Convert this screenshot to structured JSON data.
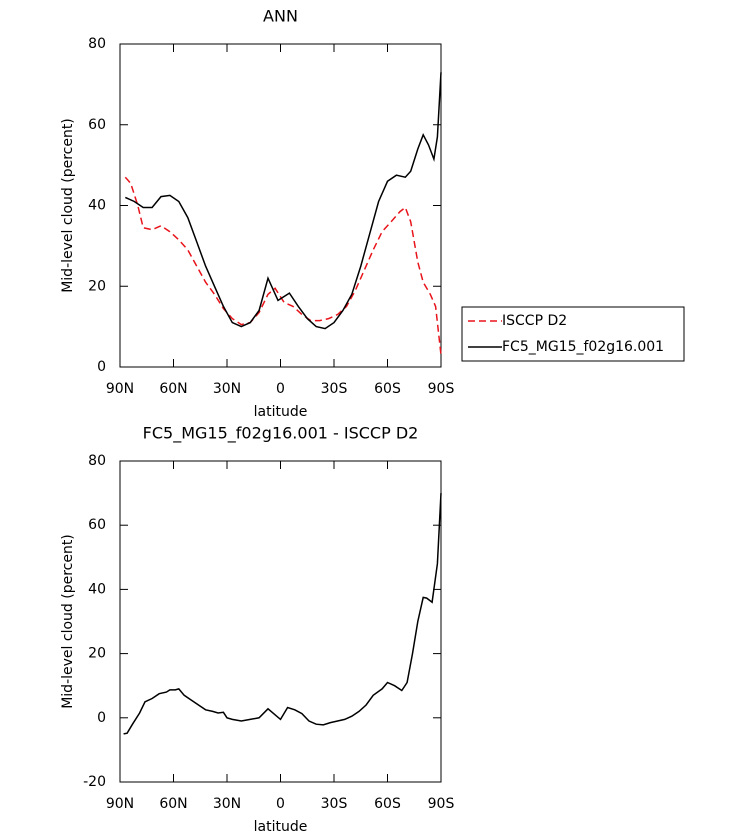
{
  "chart_data": [
    {
      "type": "line",
      "title": "ANN",
      "x_label": "latitude",
      "y_label": "Mid-level cloud (percent)",
      "xlim": [
        90,
        -90
      ],
      "xticks": [
        {
          "value": 90,
          "label": "90N"
        },
        {
          "value": 60,
          "label": "60N"
        },
        {
          "value": 30,
          "label": "30N"
        },
        0,
        {
          "value": -30,
          "label": "30S"
        },
        {
          "value": -60,
          "label": "60S"
        },
        {
          "value": -90,
          "label": "90S"
        }
      ],
      "ylim": [
        0,
        80
      ],
      "yticks": [
        0,
        20,
        40,
        60,
        80
      ],
      "legend": "right",
      "series": [
        {
          "name": "ISCCP D2",
          "color": "#e8141b",
          "linestyle": "dashed",
          "x": [
            87,
            84,
            80,
            77,
            72,
            67,
            62,
            57,
            52,
            47,
            42,
            37,
            32,
            27,
            22,
            17,
            12,
            7,
            3,
            -2,
            -7,
            -12,
            -17,
            -22,
            -27,
            -32,
            -37,
            -42,
            -47,
            -52,
            -57,
            -62,
            -67,
            -70,
            -73,
            -77,
            -80,
            -84,
            -87,
            -90
          ],
          "values": [
            47,
            45.5,
            40,
            34.5,
            34,
            35,
            33.5,
            31.5,
            29,
            25,
            21,
            18,
            14.5,
            12,
            10.5,
            11,
            13.5,
            18,
            19.5,
            16,
            15,
            13,
            11.5,
            11.5,
            12,
            13,
            15,
            19,
            24,
            29,
            33.5,
            36,
            38.5,
            39.5,
            36,
            26,
            21,
            18,
            15,
            3
          ]
        },
        {
          "name": "FC5_MG15_f02g16.001",
          "color": "#000000",
          "linestyle": "solid",
          "x": [
            87,
            82,
            77,
            72,
            67,
            62,
            57,
            52,
            47,
            42,
            37,
            32,
            27,
            22,
            17,
            12,
            7,
            1.4,
            -5,
            -10,
            -15,
            -20,
            -25,
            -30,
            -35,
            -40,
            -45,
            -50,
            -55,
            -60,
            -65,
            -70,
            -73,
            -77,
            -80,
            -83,
            -86,
            -88,
            -90
          ],
          "values": [
            42,
            41,
            39.5,
            39.5,
            42.2,
            42.5,
            41,
            37,
            31,
            25,
            20,
            15,
            11,
            10,
            11,
            14,
            22,
            16.5,
            18.3,
            15,
            12,
            10,
            9.5,
            11,
            14,
            18,
            25,
            33,
            41,
            46,
            47.5,
            47,
            48.5,
            54,
            57.5,
            55,
            51.5,
            57,
            73
          ]
        }
      ]
    },
    {
      "type": "line",
      "title": "FC5_MG15_f02g16.001 - ISCCP D2",
      "x_label": "latitude",
      "y_label": "Mid-level cloud (percent)",
      "xlim": [
        90,
        -90
      ],
      "xticks": [
        {
          "value": 90,
          "label": "90N"
        },
        {
          "value": 60,
          "label": "60N"
        },
        {
          "value": 30,
          "label": "30N"
        },
        0,
        {
          "value": -30,
          "label": "30S"
        },
        {
          "value": -60,
          "label": "60S"
        },
        {
          "value": -90,
          "label": "90S"
        }
      ],
      "ylim": [
        -20,
        80
      ],
      "yticks": [
        -20,
        0,
        20,
        40,
        60,
        80
      ],
      "series": [
        {
          "color": "#000000",
          "linestyle": "solid",
          "x": [
            88,
            86,
            83,
            79,
            76,
            72,
            68,
            64,
            62,
            59,
            57,
            54,
            50,
            46,
            42,
            38,
            35,
            32,
            30,
            27,
            22,
            17,
            12,
            7,
            0,
            -4,
            -8,
            -12,
            -16,
            -20,
            -24,
            -28,
            -32,
            -36,
            -40,
            -44,
            -48,
            -52,
            -57,
            -60,
            -64,
            -68,
            -71,
            -74,
            -77,
            -80,
            -82,
            -85,
            -88,
            -90
          ],
          "values": [
            -5,
            -4.8,
            -2,
            1.5,
            5,
            6,
            7.5,
            8,
            8.7,
            8.7,
            9,
            7,
            5.5,
            4,
            2.5,
            2,
            1.5,
            1.7,
            0,
            -0.5,
            -1,
            -0.5,
            0,
            2.8,
            -0.5,
            3.2,
            2.5,
            1.3,
            -1,
            -2,
            -2.2,
            -1.5,
            -1,
            -0.5,
            0.5,
            2,
            4,
            7,
            9,
            11,
            10,
            8.5,
            11,
            20,
            30,
            37.5,
            37.3,
            36,
            48,
            70
          ]
        }
      ]
    }
  ]
}
